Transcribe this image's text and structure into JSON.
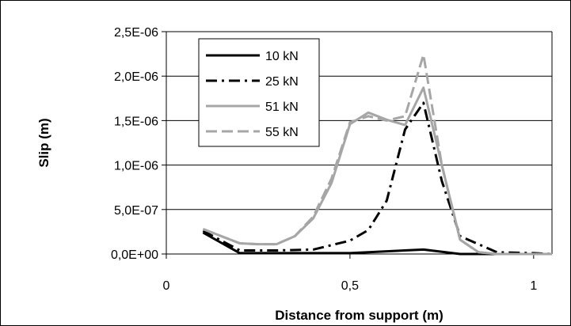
{
  "chart_data": {
    "type": "line",
    "title": "",
    "xlabel": "Distance from support (m)",
    "ylabel": "Slip (m)",
    "xlim": [
      0,
      1.05
    ],
    "ylim": [
      0,
      2.5e-06
    ],
    "x_ticks": [
      0,
      0.5,
      1
    ],
    "x_tick_labels": [
      "0",
      "0,5",
      "1"
    ],
    "y_ticks": [
      0,
      5e-07,
      1e-06,
      1.5e-06,
      2e-06,
      2.5e-06
    ],
    "y_tick_labels": [
      "0,0E+00",
      "5,0E-07",
      "1,0E-06",
      "1,5E-06",
      "2,0E-06",
      "2,5E-06"
    ],
    "grid": "horizontal",
    "legend_position": "top-left",
    "series": [
      {
        "name": "10 kN",
        "color": "#000000",
        "dash": "solid",
        "x": [
          0.1,
          0.2,
          0.3,
          0.4,
          0.5,
          0.6,
          0.7,
          0.8,
          0.9,
          1.0,
          1.05
        ],
        "y": [
          2.4e-07,
          1e-08,
          1e-08,
          1e-08,
          1e-08,
          3e-08,
          5e-08,
          0,
          0,
          0,
          0
        ]
      },
      {
        "name": "25 kN",
        "color": "#000000",
        "dash": "dashdot",
        "x": [
          0.1,
          0.2,
          0.3,
          0.4,
          0.5,
          0.55,
          0.6,
          0.65,
          0.7,
          0.75,
          0.8,
          0.9,
          1.0,
          1.05
        ],
        "y": [
          2.6e-07,
          4e-08,
          4e-08,
          5e-08,
          1.5e-07,
          2.7e-07,
          6e-07,
          1.4e-06,
          1.7e-06,
          8.2e-07,
          2e-07,
          2e-08,
          1e-08,
          0
        ]
      },
      {
        "name": "51 kN",
        "color": "#a6a6a6",
        "dash": "solid",
        "x": [
          0.1,
          0.15,
          0.2,
          0.25,
          0.3,
          0.35,
          0.4,
          0.45,
          0.5,
          0.55,
          0.6,
          0.65,
          0.7,
          0.75,
          0.8,
          0.85,
          0.9,
          1.0,
          1.05
        ],
        "y": [
          2.8e-07,
          2e-07,
          1.2e-07,
          1.1e-07,
          1.1e-07,
          2e-07,
          4e-07,
          8e-07,
          1.46e-06,
          1.59e-06,
          1.51e-06,
          1.45e-06,
          1.87e-06,
          1e-06,
          1.6e-07,
          2e-08,
          0,
          0,
          0
        ]
      },
      {
        "name": "55 kN",
        "color": "#a6a6a6",
        "dash": "dashed",
        "x": [
          0.1,
          0.15,
          0.2,
          0.25,
          0.3,
          0.35,
          0.4,
          0.45,
          0.5,
          0.55,
          0.6,
          0.65,
          0.7,
          0.75,
          0.8,
          0.85,
          0.9,
          1.0,
          1.05
        ],
        "y": [
          2.8e-07,
          2e-07,
          1.2e-07,
          1.1e-07,
          1.1e-07,
          2e-07,
          4.2e-07,
          8.5e-07,
          1.48e-06,
          1.55e-06,
          1.5e-06,
          1.55e-06,
          2.24e-06,
          1e-06,
          1.6e-07,
          2e-08,
          0,
          0,
          0
        ]
      }
    ]
  }
}
